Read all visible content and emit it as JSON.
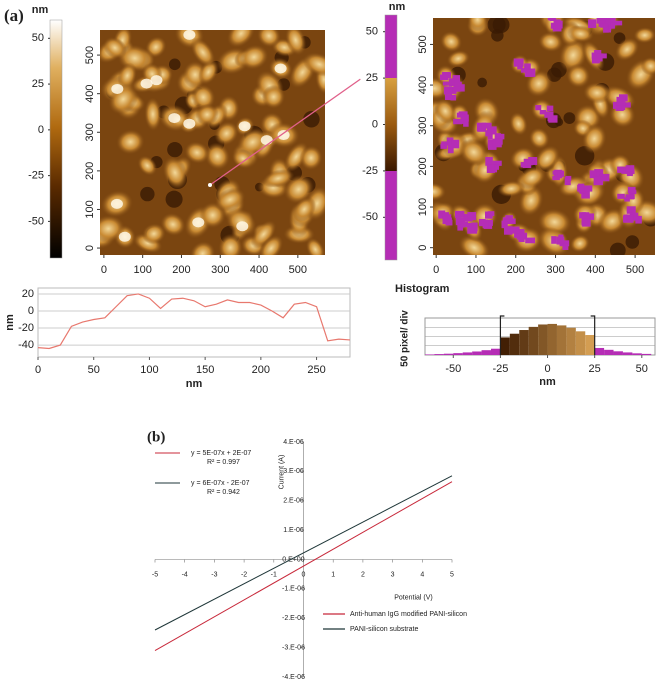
{
  "chart_data": [
    {
      "type": "heatmap",
      "panel": "(a)",
      "colorbar_label": "nm",
      "colorbar_lim": [
        -70,
        60
      ],
      "colorbar_ticks": [
        50,
        25,
        0,
        -25,
        -50
      ],
      "xlim": [
        -10,
        570
      ],
      "xticks": [
        0,
        100,
        200,
        300,
        400,
        500
      ],
      "ylim": [
        -18,
        565
      ],
      "yticks": [
        0,
        100,
        200,
        300,
        400,
        500
      ]
    },
    {
      "type": "line",
      "xlabel": "nm",
      "ylabel": "nm",
      "color": "#e8786e",
      "x": [
        0,
        10,
        20,
        30,
        40,
        50,
        60,
        70,
        80,
        90,
        100,
        110,
        120,
        130,
        140,
        150,
        160,
        170,
        180,
        190,
        200,
        210,
        220,
        230,
        240,
        250,
        260,
        270,
        280
      ],
      "values": [
        -43,
        -44,
        -40,
        -18,
        -13,
        -10,
        -8,
        5,
        18,
        20,
        15,
        3,
        14,
        15,
        12,
        5,
        8,
        13,
        10,
        10,
        7,
        0,
        -8,
        8,
        10,
        5,
        -35,
        -33,
        -34
      ],
      "xlim": [
        0,
        280
      ],
      "xticks": [
        0,
        50,
        100,
        150,
        200,
        250
      ],
      "ylim": [
        -54,
        27
      ],
      "yticks": [
        20,
        0,
        -20,
        -40
      ],
      "grid": true
    },
    {
      "type": "heatmap",
      "colorbar_label": "nm",
      "colorbar_lim": [
        -73,
        59
      ],
      "colorbar_ticks": [
        50,
        25,
        0,
        -25,
        -50
      ],
      "threshold": [
        -25,
        25
      ],
      "mask_color": "#b52db5",
      "xlim": [
        -8,
        550
      ],
      "xticks": [
        0,
        100,
        200,
        300,
        400,
        500
      ],
      "ylim": [
        -18,
        565
      ],
      "yticks": [
        0,
        100,
        200,
        300,
        400,
        500
      ]
    },
    {
      "type": "histogram",
      "title": "Histogram",
      "xlabel": "nm",
      "ylabel": "50 pixel/ div",
      "threshold": [
        -25,
        25
      ],
      "mask_color": "#b52db5",
      "bins": [
        -65,
        -60,
        -55,
        -50,
        -45,
        -40,
        -35,
        -30,
        -25,
        -20,
        -15,
        -10,
        -5,
        0,
        5,
        10,
        15,
        20,
        25,
        30,
        35,
        40,
        45,
        50,
        55
      ],
      "values": [
        3,
        5,
        7,
        10,
        14,
        19,
        26,
        34,
        95,
        115,
        135,
        152,
        165,
        168,
        160,
        147,
        128,
        108,
        38,
        28,
        20,
        14,
        9,
        6
      ],
      "xlim": [
        -65,
        57
      ],
      "xticks": [
        -50,
        -25,
        0,
        25,
        50
      ],
      "ylim": [
        0,
        200
      ],
      "ygrid": [
        0,
        50,
        100,
        150
      ],
      "grid": true
    },
    {
      "type": "line",
      "panel": "(b)",
      "xlabel": "Potential (V)",
      "ylabel": "Current (A)",
      "x": [
        -5,
        5
      ],
      "series": [
        {
          "name": "Anti-human IgG modified PANI-silicon",
          "color": "#c8283a",
          "values": [
            -3.1e-06,
            2.65e-06
          ],
          "equation": "y = 5E-07x + 2E-07",
          "r2": "R² = 0.997"
        },
        {
          "name": "PANI-silicon substrate",
          "color": "#1e3638",
          "values": [
            -2.4e-06,
            2.85e-06
          ],
          "equation": "y = 6E-07x - 2E-07",
          "r2": "R² = 0.942"
        }
      ],
      "xlim": [
        -5,
        5
      ],
      "xticks": [
        -5,
        -4,
        -3,
        -2,
        -1,
        0,
        1,
        2,
        3,
        4,
        5
      ],
      "ylim": [
        -4e-06,
        4e-06
      ],
      "yticks": [
        {
          "value": 4e-06,
          "label": "4.E-06"
        },
        {
          "value": 3e-06,
          "label": "3.E-06"
        },
        {
          "value": 2e-06,
          "label": "2.E-06"
        },
        {
          "value": 1e-06,
          "label": "1.E-06"
        },
        {
          "value": 0,
          "label": "0.E+00"
        },
        {
          "value": -1e-06,
          "label": "-1.E-06"
        },
        {
          "value": -2e-06,
          "label": "-2.E-06"
        },
        {
          "value": -3e-06,
          "label": "-3.E-06"
        },
        {
          "value": -4e-06,
          "label": "-4.E-06"
        }
      ]
    }
  ]
}
